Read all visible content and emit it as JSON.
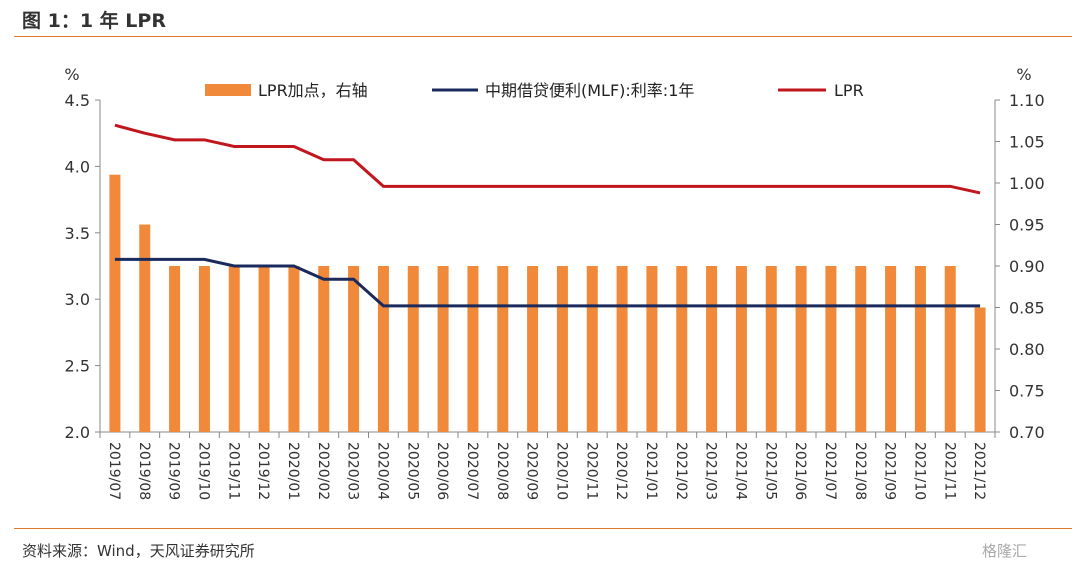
{
  "figure": {
    "title": "图 1：1 年 LPR",
    "source": "资料来源：Wind，天风证券研究所",
    "watermark": "格隆汇"
  },
  "colors": {
    "accent": "#e07a2a",
    "bar": "#f08a3a",
    "mlf_line": "#1b2a5c",
    "lpr_line": "#c0161e"
  },
  "chart_data": {
    "type": "bar",
    "categories": [
      "2019/07",
      "2019/08",
      "2019/09",
      "2019/10",
      "2019/11",
      "2019/12",
      "2020/01",
      "2020/02",
      "2020/03",
      "2020/04",
      "2020/05",
      "2020/06",
      "2020/07",
      "2020/08",
      "2020/09",
      "2020/10",
      "2020/11",
      "2020/12",
      "2021/01",
      "2021/02",
      "2021/03",
      "2021/04",
      "2021/05",
      "2021/06",
      "2021/07",
      "2021/08",
      "2021/09",
      "2021/10",
      "2021/11",
      "2021/12"
    ],
    "left_axis": {
      "unit": "%",
      "ylim": [
        2.0,
        4.5
      ],
      "ticks": [
        "2.0",
        "2.5",
        "3.0",
        "3.5",
        "4.0",
        "4.5"
      ]
    },
    "right_axis": {
      "unit": "%",
      "ylim": [
        0.7,
        1.1
      ],
      "ticks": [
        "0.70",
        "0.75",
        "0.80",
        "0.85",
        "0.90",
        "0.95",
        "1.00",
        "1.05",
        "1.10"
      ]
    },
    "series": [
      {
        "name": "LPR加点，右轴",
        "type": "bar",
        "axis": "right",
        "values": [
          1.01,
          0.95,
          0.9,
          0.9,
          0.9,
          0.9,
          0.9,
          0.9,
          0.9,
          0.9,
          0.9,
          0.9,
          0.9,
          0.9,
          0.9,
          0.9,
          0.9,
          0.9,
          0.9,
          0.9,
          0.9,
          0.9,
          0.9,
          0.9,
          0.9,
          0.9,
          0.9,
          0.9,
          0.9,
          0.85
        ]
      },
      {
        "name": "中期借贷便利(MLF):利率:1年",
        "type": "line",
        "axis": "left",
        "values": [
          3.3,
          3.3,
          3.3,
          3.3,
          3.25,
          3.25,
          3.25,
          3.15,
          3.15,
          2.95,
          2.95,
          2.95,
          2.95,
          2.95,
          2.95,
          2.95,
          2.95,
          2.95,
          2.95,
          2.95,
          2.95,
          2.95,
          2.95,
          2.95,
          2.95,
          2.95,
          2.95,
          2.95,
          2.95,
          2.95
        ]
      },
      {
        "name": "LPR",
        "type": "line",
        "axis": "left",
        "values": [
          4.31,
          4.25,
          4.2,
          4.2,
          4.15,
          4.15,
          4.15,
          4.05,
          4.05,
          3.85,
          3.85,
          3.85,
          3.85,
          3.85,
          3.85,
          3.85,
          3.85,
          3.85,
          3.85,
          3.85,
          3.85,
          3.85,
          3.85,
          3.85,
          3.85,
          3.85,
          3.85,
          3.85,
          3.85,
          3.8
        ]
      }
    ],
    "grid": false,
    "legend": "top"
  }
}
